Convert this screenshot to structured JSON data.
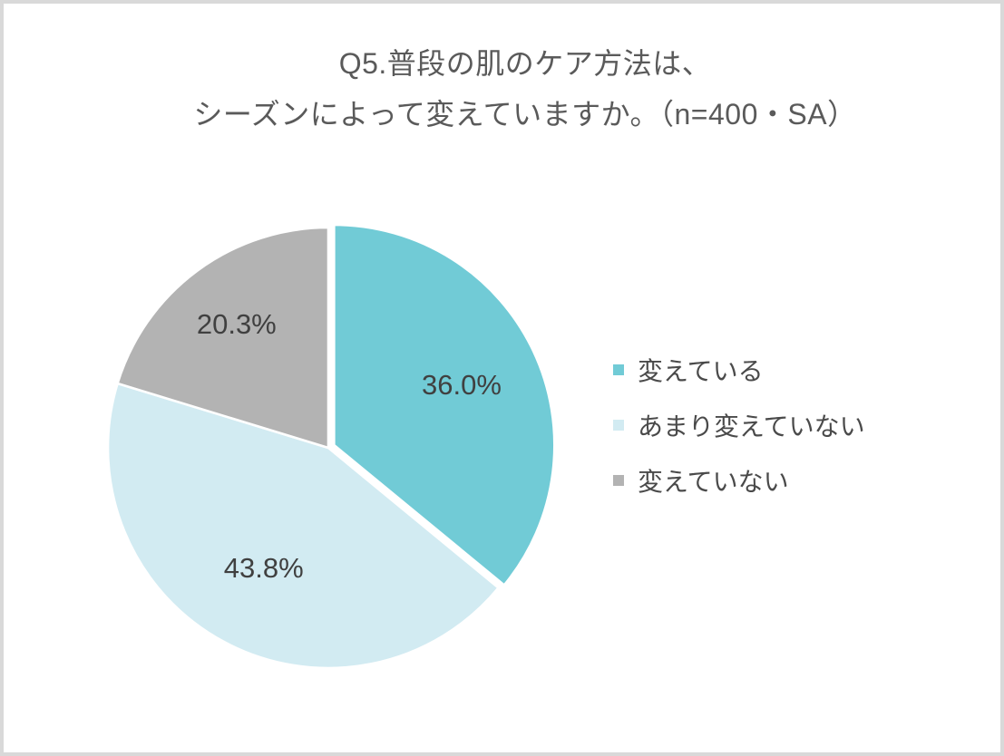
{
  "frame": {
    "background": "#ffffff",
    "border_color": "#d9d9d9"
  },
  "title": {
    "line1": "Q5.普段の肌のケア方法は、",
    "line2": "シーズンによって変えていますか。（n=400・SA）",
    "full": "Q5.普段の肌のケア方法は、シーズンによって変えていますか。（n=400・SA）",
    "color": "#5a5a5a"
  },
  "chart_data": {
    "type": "pie",
    "title": "Q5.普段の肌のケア方法は、シーズンによって変えていますか。（n=400・SA）",
    "sample_size": "n=400・SA",
    "unit": "%",
    "start_angle_deg": 0,
    "direction": "clockwise",
    "legend_position": "right",
    "grid": false,
    "slice_border_color": "#ffffff",
    "label_color": "#404040",
    "legend_text_color": "#4a4a4a",
    "slices": [
      {
        "label": "変えている",
        "value": 36.0,
        "display": "36.0%",
        "color": "#71cbd6",
        "exploded": true,
        "label_r": 0.64
      },
      {
        "label": "あまり変えていない",
        "value": 43.8,
        "display": "43.8%",
        "color": "#d2ebf2",
        "exploded": false,
        "label_r": 0.62
      },
      {
        "label": "変えていない",
        "value": 20.3,
        "display": "20.3%",
        "color": "#b3b3b3",
        "exploded": false,
        "label_r": 0.7
      }
    ]
  }
}
